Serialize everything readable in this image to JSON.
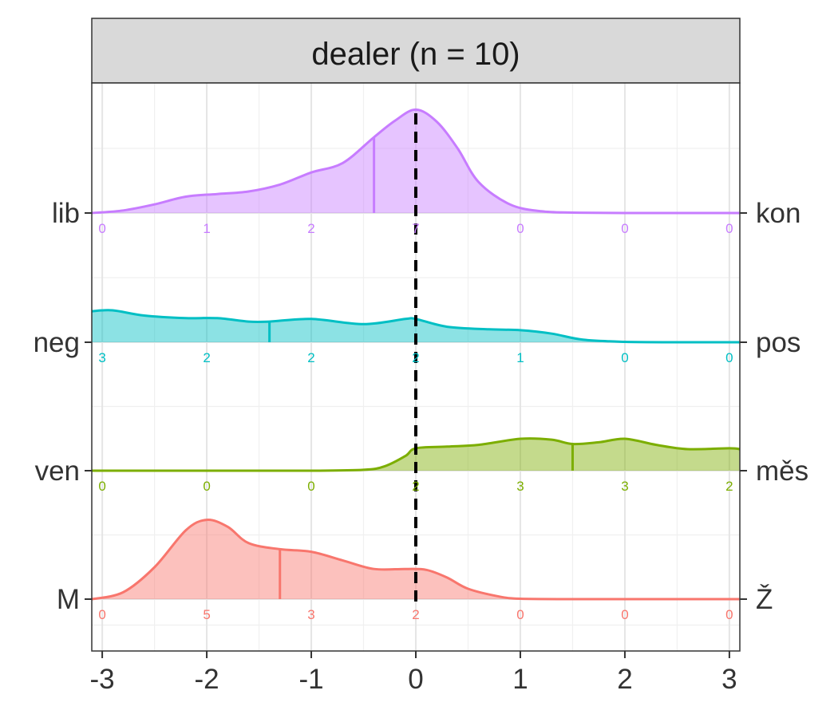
{
  "chart_data": {
    "type": "ridgeline",
    "title": "dealer (n = 10)",
    "x_ticks": [
      -3,
      -2,
      -1,
      0,
      1,
      2,
      3
    ],
    "x_tick_labels": [
      "-3",
      "-2",
      "-1",
      "0",
      "1",
      "2",
      "3"
    ],
    "xlim": [
      -3.1,
      3.1
    ],
    "reference_line_x": 0,
    "grid": true,
    "count_positions": [
      -3,
      -2,
      -1,
      0,
      1,
      2,
      3
    ],
    "series": [
      {
        "left_label": "M",
        "right_label": "Ž",
        "color": "#F8766D",
        "mean": -1.3,
        "counts": [
          "0",
          "5",
          "3",
          "2",
          "0",
          "0",
          "0"
        ],
        "curve_x": [
          -3.1,
          -2.8,
          -2.5,
          -2.2,
          -2.0,
          -1.8,
          -1.6,
          -1.3,
          -1.0,
          -0.7,
          -0.4,
          -0.1,
          0.1,
          0.3,
          0.5,
          0.8,
          1.0,
          1.5,
          2.0,
          3.1
        ],
        "curve_y": [
          0.0,
          0.08,
          0.37,
          0.8,
          0.92,
          0.84,
          0.65,
          0.58,
          0.55,
          0.45,
          0.35,
          0.35,
          0.34,
          0.25,
          0.12,
          0.03,
          0.005,
          0.0,
          0.0,
          0.0
        ]
      },
      {
        "left_label": "ven",
        "right_label": "měs",
        "color": "#7CAE00",
        "mean": 1.5,
        "counts": [
          "0",
          "0",
          "0",
          "2",
          "3",
          "3",
          "2"
        ],
        "curve_x": [
          -3.1,
          -2.0,
          -1.0,
          -0.5,
          -0.3,
          -0.1,
          0.0,
          0.3,
          0.6,
          1.0,
          1.3,
          1.5,
          1.75,
          2.0,
          2.3,
          2.6,
          3.0,
          3.1
        ],
        "curve_y": [
          0.0,
          0.0,
          0.0,
          0.01,
          0.05,
          0.17,
          0.26,
          0.28,
          0.3,
          0.37,
          0.36,
          0.31,
          0.33,
          0.37,
          0.3,
          0.25,
          0.26,
          0.25
        ]
      },
      {
        "left_label": "neg",
        "right_label": "pos",
        "color": "#00BFC4",
        "mean": -1.4,
        "counts": [
          "3",
          "2",
          "2",
          "2",
          "1",
          "0",
          "0"
        ],
        "curve_x": [
          -3.1,
          -2.9,
          -2.6,
          -2.2,
          -1.9,
          -1.6,
          -1.4,
          -1.0,
          -0.5,
          -0.1,
          0.0,
          0.3,
          0.7,
          1.0,
          1.3,
          1.6,
          2.0,
          2.5,
          3.1
        ],
        "curve_y": [
          0.36,
          0.37,
          0.31,
          0.28,
          0.28,
          0.24,
          0.24,
          0.27,
          0.21,
          0.27,
          0.27,
          0.18,
          0.15,
          0.14,
          0.1,
          0.03,
          0.005,
          0.0,
          0.0
        ]
      },
      {
        "left_label": "lib",
        "right_label": "kon",
        "color": "#C77CFF",
        "mean": -0.4,
        "counts": [
          "0",
          "1",
          "2",
          "7",
          "0",
          "0",
          "0"
        ],
        "curve_x": [
          -3.1,
          -2.8,
          -2.5,
          -2.2,
          -1.9,
          -1.6,
          -1.3,
          -1.0,
          -0.7,
          -0.4,
          -0.2,
          0.0,
          0.2,
          0.4,
          0.6,
          0.9,
          1.2,
          1.5,
          2.0,
          3.1
        ],
        "curve_y": [
          0.0,
          0.03,
          0.1,
          0.19,
          0.22,
          0.25,
          0.33,
          0.47,
          0.58,
          0.88,
          1.07,
          1.2,
          1.06,
          0.75,
          0.36,
          0.1,
          0.02,
          0.005,
          0.0,
          0.0
        ]
      }
    ]
  }
}
